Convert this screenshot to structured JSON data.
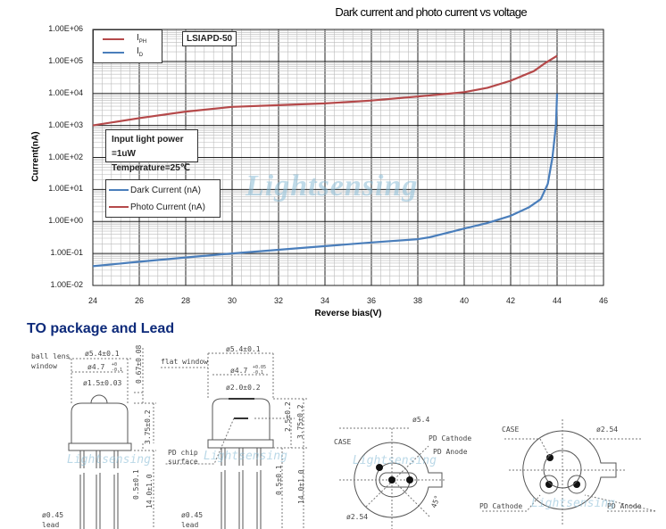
{
  "chart_data": {
    "type": "line",
    "title": "Dark current and photo current vs voltage",
    "xlabel": "Reverse bias(V)",
    "ylabel": "Current(nA)",
    "xlim": [
      24,
      46
    ],
    "ylim": [
      0.01,
      1000000
    ],
    "yscale": "log",
    "grid": true,
    "x_ticks": [
      "24",
      "26",
      "28",
      "30",
      "32",
      "34",
      "36",
      "38",
      "40",
      "42",
      "44",
      "46"
    ],
    "y_ticks": [
      "1.00E+06",
      "1.00E+05",
      "1.00E+04",
      "1.00E+03",
      "1.00E+02",
      "1.00E+01",
      "1.00E+00",
      "1.00E-01",
      "1.00E-02"
    ],
    "series": [
      {
        "name": "Photo Current (nA)",
        "short_name": "I_PH",
        "color": "#b5494a",
        "x": [
          24,
          26,
          28,
          30,
          32,
          34,
          36,
          38,
          40,
          41,
          42,
          43,
          43.5,
          44
        ],
        "y": [
          1000,
          1700,
          2700,
          3800,
          4300,
          4900,
          6000,
          8000,
          11000,
          15000,
          25000,
          50000,
          90000,
          150000
        ]
      },
      {
        "name": "Dark Current (nA)",
        "short_name": "I_D",
        "color": "#4a7ebb",
        "x": [
          24,
          26,
          28,
          30,
          32,
          34,
          36,
          38,
          38.5,
          40,
          41,
          42,
          42.8,
          43.3,
          43.6,
          43.8,
          43.95,
          44
        ],
        "y": [
          0.04,
          0.055,
          0.075,
          0.1,
          0.13,
          0.17,
          0.22,
          0.28,
          0.32,
          0.6,
          0.9,
          1.5,
          2.8,
          5,
          15,
          100,
          1000,
          10000
        ]
      }
    ],
    "legend_top": {
      "items": [
        {
          "label": "I",
          "sub": "PH"
        },
        {
          "label": "I",
          "sub": "D"
        }
      ],
      "placement": "top-left"
    },
    "legend_bottom": {
      "items": [
        "Dark Current (nA)",
        "Photo Current (nA)"
      ],
      "placement": "center-left"
    },
    "annotations": {
      "model": "LSIAPD-50",
      "conditions": [
        "Input light power =1uW",
        "Temperature=25℃"
      ]
    }
  },
  "watermark": "Lightsensing",
  "package": {
    "section_title": "TO package and Lead",
    "left": {
      "window_label": [
        "ball lens",
        "window"
      ],
      "dia_outer": "ø5.4±0.1",
      "dia_inner": "ø4.7",
      "dia_inner_tol": [
        "+0",
        "-0.1"
      ],
      "lens_dia": "ø1.5±0.03",
      "lens_height": "0.67±0.08",
      "cap_height": "3.75±0.2",
      "flange": "0.5±0.1",
      "lead_length": "14.0±1.0",
      "lead_label": [
        "ø0.45",
        "lead"
      ]
    },
    "right": {
      "window_label": "flat window",
      "dia_outer": "ø5.4±0.1",
      "dia_inner": "ø4.7",
      "dia_inner_tol": [
        "+0.05",
        "-0.1"
      ],
      "window_dia": "ø2.0±0.2",
      "chip_height": "2.5±0.2",
      "cap_height": "3.75±0.2",
      "chip_label": [
        "PD chip",
        "surface"
      ],
      "flange": "0.5±0.1",
      "lead_length": "14.0±1.0",
      "lead_label": [
        "ø0.45",
        "lead"
      ]
    },
    "bottom_view_1": {
      "dia": "ø5.4",
      "case": "CASE",
      "cathode": "PD Cathode",
      "anode": "PD Anode",
      "pin_circle": "ø2.54",
      "angle": "45°"
    },
    "bottom_view_2": {
      "case": "CASE",
      "pin_circle": "ø2.54",
      "cathode": "PD Cathode",
      "anode": "PD Anode"
    }
  }
}
